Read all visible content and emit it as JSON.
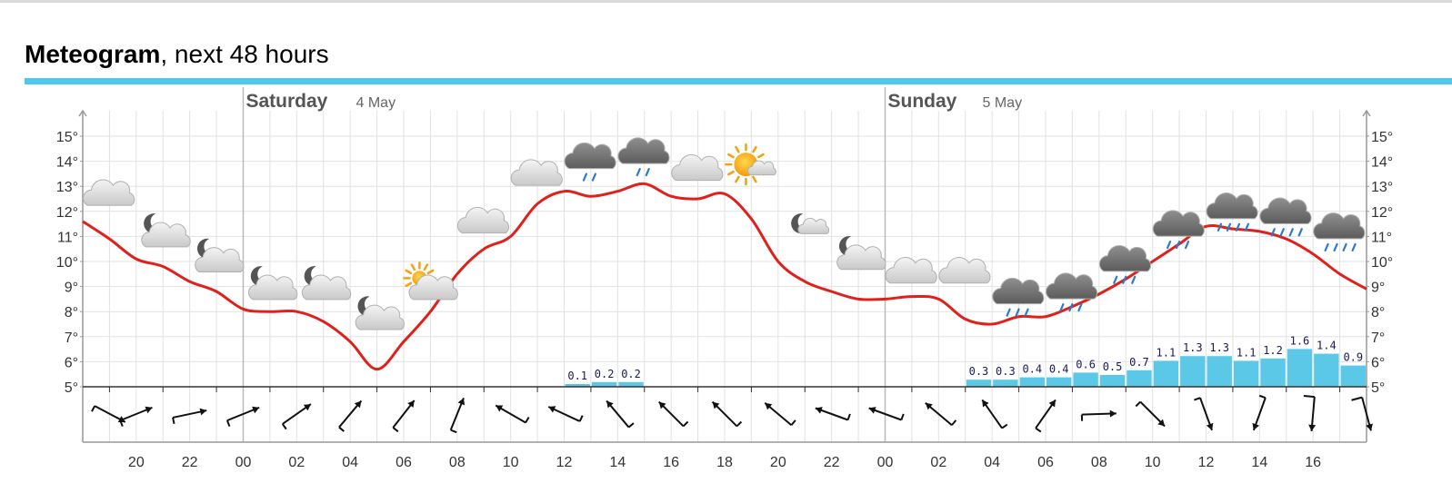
{
  "title": {
    "bold": "Meteogram",
    "rest": ", next 48 hours"
  },
  "colors": {
    "accent_rule": "#4fc8ee",
    "temperature_line": "#e0201b",
    "precipitation_bar": "#5bc8e8",
    "grid": "#e2e2e2"
  },
  "chart_data": {
    "type": "meteogram",
    "days": [
      {
        "name": "Saturday",
        "date": "4 May",
        "start_hour_index": 6
      },
      {
        "name": "Sunday",
        "date": "5 May",
        "start_hour_index": 30
      }
    ],
    "hour_ticks": [
      "20",
      "22",
      "00",
      "02",
      "04",
      "06",
      "08",
      "10",
      "12",
      "14",
      "16",
      "18",
      "20",
      "22",
      "00",
      "02",
      "04",
      "06",
      "08",
      "10",
      "12",
      "14",
      "16"
    ],
    "y_axis": {
      "min": 5,
      "max": 15,
      "unit": "°",
      "labels": [
        "15°",
        "14°",
        "13°",
        "12°",
        "11°",
        "10°",
        "9°",
        "8°",
        "7°",
        "6°",
        "5°"
      ]
    },
    "temperature": [
      11.6,
      10.9,
      10.1,
      9.8,
      9.2,
      8.8,
      8.1,
      8.0,
      8.0,
      7.6,
      6.8,
      5.7,
      6.8,
      8.0,
      9.5,
      10.5,
      11.0,
      12.3,
      12.8,
      12.6,
      12.8,
      13.1,
      12.6,
      12.5,
      12.7,
      11.7,
      10.0,
      9.2,
      8.8,
      8.5,
      8.5,
      8.6,
      8.5,
      7.7,
      7.5,
      7.8,
      7.8,
      8.2,
      8.7,
      9.3,
      10.0,
      10.7,
      11.4,
      11.3,
      11.2,
      10.9,
      10.3,
      9.5,
      8.9
    ],
    "precipitation": [
      {
        "slot": 18,
        "value": 0.1
      },
      {
        "slot": 19,
        "value": 0.2
      },
      {
        "slot": 20,
        "value": 0.2
      },
      {
        "slot": 33,
        "value": 0.3
      },
      {
        "slot": 34,
        "value": 0.3
      },
      {
        "slot": 35,
        "value": 0.4
      },
      {
        "slot": 36,
        "value": 0.4
      },
      {
        "slot": 37,
        "value": 0.6
      },
      {
        "slot": 38,
        "value": 0.5
      },
      {
        "slot": 39,
        "value": 0.7
      },
      {
        "slot": 40,
        "value": 1.1
      },
      {
        "slot": 41,
        "value": 1.3
      },
      {
        "slot": 42,
        "value": 1.3
      },
      {
        "slot": 43,
        "value": 1.1
      },
      {
        "slot": 44,
        "value": 1.2
      },
      {
        "slot": 45,
        "value": 1.6
      },
      {
        "slot": 46,
        "value": 1.4
      },
      {
        "slot": 47,
        "value": 0.9
      }
    ],
    "symbols": [
      {
        "hour": 1,
        "temp": 12.6,
        "icon": "cloudy-icon"
      },
      {
        "hour": 3,
        "temp": 11.0,
        "icon": "partly-cloudy-night-icon"
      },
      {
        "hour": 5,
        "temp": 10.0,
        "icon": "partly-cloudy-night-icon"
      },
      {
        "hour": 7,
        "temp": 8.9,
        "icon": "partly-cloudy-night-icon"
      },
      {
        "hour": 9,
        "temp": 8.9,
        "icon": "partly-cloudy-night-icon"
      },
      {
        "hour": 11,
        "temp": 7.7,
        "icon": "partly-cloudy-night-icon"
      },
      {
        "hour": 13,
        "temp": 8.9,
        "icon": "partly-cloudy-day-icon"
      },
      {
        "hour": 15,
        "temp": 11.5,
        "icon": "cloudy-icon"
      },
      {
        "hour": 17,
        "temp": 13.4,
        "icon": "cloudy-icon"
      },
      {
        "hour": 19,
        "temp": 14.0,
        "icon": "light-rain-icon"
      },
      {
        "hour": 21,
        "temp": 14.2,
        "icon": "light-rain-icon"
      },
      {
        "hour": 23,
        "temp": 13.6,
        "icon": "cloudy-icon"
      },
      {
        "hour": 25,
        "temp": 13.8,
        "icon": "fair-day-icon"
      },
      {
        "hour": 27,
        "temp": 11.4,
        "icon": "fair-night-icon"
      },
      {
        "hour": 29,
        "temp": 10.1,
        "icon": "partly-cloudy-night-icon"
      },
      {
        "hour": 31,
        "temp": 9.5,
        "icon": "cloudy-icon"
      },
      {
        "hour": 33,
        "temp": 9.5,
        "icon": "cloudy-icon"
      },
      {
        "hour": 35,
        "temp": 8.6,
        "icon": "rain-icon"
      },
      {
        "hour": 37,
        "temp": 8.8,
        "icon": "rain-icon"
      },
      {
        "hour": 39,
        "temp": 9.9,
        "icon": "rain-icon"
      },
      {
        "hour": 41,
        "temp": 11.3,
        "icon": "rain-icon"
      },
      {
        "hour": 43,
        "temp": 12.0,
        "icon": "heavy-rain-icon"
      },
      {
        "hour": 45,
        "temp": 11.8,
        "icon": "heavy-rain-icon"
      },
      {
        "hour": 47,
        "temp": 11.2,
        "icon": "heavy-rain-icon"
      }
    ],
    "wind": [
      {
        "hour": 0,
        "toward_deg": 118,
        "speed_ms": 4
      },
      {
        "hour": 2,
        "toward_deg": 68,
        "speed_ms": 4
      },
      {
        "hour": 4,
        "toward_deg": 78,
        "speed_ms": 4
      },
      {
        "hour": 6,
        "toward_deg": 68,
        "speed_ms": 4
      },
      {
        "hour": 8,
        "toward_deg": 55,
        "speed_ms": 4
      },
      {
        "hour": 10,
        "toward_deg": 40,
        "speed_ms": 4
      },
      {
        "hour": 12,
        "toward_deg": 38,
        "speed_ms": 5
      },
      {
        "hour": 14,
        "toward_deg": 22,
        "speed_ms": 3
      },
      {
        "hour": 16,
        "toward_deg": 300,
        "speed_ms": 3
      },
      {
        "hour": 18,
        "toward_deg": 295,
        "speed_ms": 4
      },
      {
        "hour": 20,
        "toward_deg": 320,
        "speed_ms": 4
      },
      {
        "hour": 22,
        "toward_deg": 315,
        "speed_ms": 6
      },
      {
        "hour": 24,
        "toward_deg": 315,
        "speed_ms": 6
      },
      {
        "hour": 26,
        "toward_deg": 310,
        "speed_ms": 4
      },
      {
        "hour": 28,
        "toward_deg": 290,
        "speed_ms": 4
      },
      {
        "hour": 30,
        "toward_deg": 290,
        "speed_ms": 4
      },
      {
        "hour": 32,
        "toward_deg": 310,
        "speed_ms": 4
      },
      {
        "hour": 34,
        "toward_deg": 325,
        "speed_ms": 4
      },
      {
        "hour": 36,
        "toward_deg": 35,
        "speed_ms": 4
      },
      {
        "hour": 38,
        "toward_deg": 88,
        "speed_ms": 4
      },
      {
        "hour": 40,
        "toward_deg": 135,
        "speed_ms": 4
      },
      {
        "hour": 42,
        "toward_deg": 160,
        "speed_ms": 5
      },
      {
        "hour": 44,
        "toward_deg": 200,
        "speed_ms": 5
      },
      {
        "hour": 46,
        "toward_deg": 185,
        "speed_ms": 8
      },
      {
        "hour": 48,
        "toward_deg": 165,
        "speed_ms": 8
      }
    ]
  }
}
